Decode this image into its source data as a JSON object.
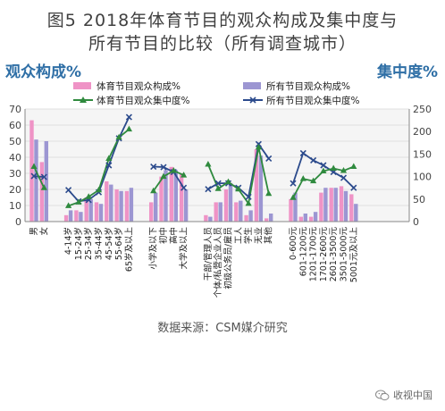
{
  "title": "图5  2018年体育节目的观众构成及集中度与",
  "subtitle": "所有节目的比较（所有调查城市）",
  "source": "数据来源：CSM媒介研究",
  "watermark": "收视中国",
  "colors": {
    "sports_bar": "#ef93c6",
    "all_bar": "#9c96d2",
    "sports_line": "#2f8a3e",
    "all_line": "#2b4a8c",
    "axis_text": "#2f6fa6",
    "panel_bg": "#f5f5f5",
    "grid": "#d9d9d9"
  },
  "chart_data": {
    "type": "bar",
    "title": "",
    "y_left_title": "观众构成%",
    "y_right_title": "集中度%",
    "y_left_range": [
      0,
      70
    ],
    "y_left_ticks": [
      0,
      10,
      20,
      30,
      40,
      50,
      60,
      70
    ],
    "y_right_range": [
      0,
      250
    ],
    "y_right_ticks": [
      0,
      50,
      100,
      150,
      200,
      250
    ],
    "grid": true,
    "legend": [
      {
        "key": "sports_comp",
        "label": "体育节目观众构成%",
        "kind": "bar"
      },
      {
        "key": "all_comp",
        "label": "所有节目观众构成%",
        "kind": "bar"
      },
      {
        "key": "sports_conc",
        "label": "体育节目观众集中度%",
        "kind": "line"
      },
      {
        "key": "all_conc",
        "label": "所有节目观众集中度%",
        "kind": "line"
      }
    ],
    "groups": [
      {
        "name": "gender",
        "categories": [
          "男",
          "女"
        ],
        "sports_comp": [
          63,
          37
        ],
        "all_comp": [
          51,
          50
        ],
        "sports_conc": [
          122,
          75
        ],
        "all_conc": [
          101,
          99
        ]
      },
      {
        "name": "age",
        "categories": [
          "4-14岁",
          "15-24岁",
          "25-34岁",
          "35-44岁",
          "45-54岁",
          "55-64岁",
          "65岁及以上"
        ],
        "sports_comp": [
          4,
          7,
          15,
          12,
          25,
          20,
          19
        ],
        "all_comp": [
          7,
          6,
          14,
          11,
          23,
          19,
          21
        ],
        "sports_conc": [
          35,
          43,
          55,
          70,
          140,
          187,
          205
        ],
        "all_conc": [
          70,
          45,
          48,
          65,
          125,
          185,
          232
        ]
      },
      {
        "name": "education",
        "categories": [
          "小学及以下",
          "初中",
          "高中",
          "大学及以上"
        ],
        "sports_comp": [
          12,
          28,
          34,
          30
        ],
        "all_comp": [
          18,
          32,
          32,
          20
        ],
        "sports_conc": [
          68,
          100,
          113,
          103
        ],
        "all_conc": [
          122,
          121,
          110,
          75
        ]
      },
      {
        "name": "occupation",
        "categories": [
          "干部/管理人员",
          "个体/私营企业人员",
          "初级公务员/雇员",
          "工人",
          "学生",
          "无业",
          "其他"
        ],
        "sports_comp": [
          4,
          12,
          20,
          12,
          4,
          45,
          2
        ],
        "all_comp": [
          3,
          12,
          24,
          13,
          7,
          41,
          5
        ],
        "sports_conc": [
          127,
          73,
          88,
          72,
          40,
          165,
          62
        ],
        "all_conc": [
          72,
          85,
          85,
          75,
          55,
          172,
          140
        ]
      },
      {
        "name": "income",
        "categories": [
          "0-600元",
          "601-1200元",
          "1201-1700元",
          "1701-2600元",
          "2601-3500元",
          "3501-5000元",
          "5001元及以上"
        ],
        "sports_comp": [
          14,
          3,
          3,
          18,
          21,
          22,
          17
        ],
        "all_comp": [
          18,
          5,
          6,
          21,
          21,
          19,
          11
        ],
        "sports_conc": [
          53,
          95,
          90,
          112,
          118,
          113,
          122
        ],
        "all_conc": [
          85,
          152,
          136,
          125,
          110,
          97,
          75
        ]
      }
    ]
  }
}
